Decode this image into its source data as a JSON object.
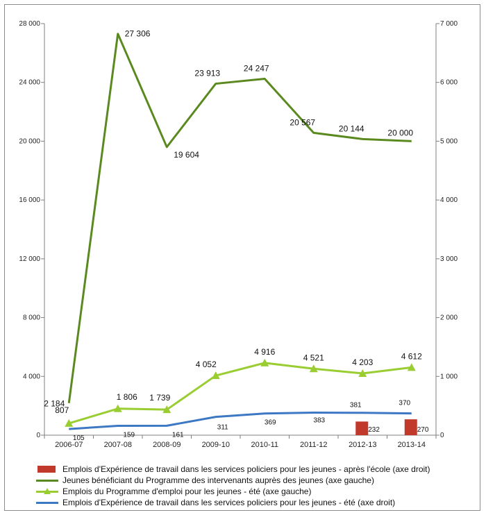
{
  "chart_data": {
    "type": "line",
    "categories": [
      "2006-07",
      "2007-08",
      "2008-09",
      "2009-10",
      "2010-11",
      "2011-12",
      "2012-13",
      "2013-14"
    ],
    "y_left": {
      "ylim": [
        0,
        28000
      ],
      "ticks": [
        0,
        4000,
        8000,
        12000,
        16000,
        20000,
        24000,
        28000
      ],
      "tick_labels": [
        "0",
        "4 000",
        "8 000",
        "12 000",
        "16 000",
        "20 000",
        "24 000",
        "28 000"
      ]
    },
    "y_right": {
      "ylim": [
        0,
        7000
      ],
      "ticks": [
        0,
        1000,
        2000,
        3000,
        4000,
        5000,
        6000,
        7000
      ],
      "tick_labels": [
        "0",
        "1 000",
        "2 000",
        "3 000",
        "4 000",
        "5 000",
        "6 000",
        "7 000"
      ]
    },
    "grid": false,
    "legend_position": "bottom",
    "series": [
      {
        "name": "Emplois d'Expérience de travail dans les services policiers pour les jeunes - après l'école (axe droit)",
        "kind": "bar",
        "axis": "right",
        "color": "#c0392b",
        "values": [
          null,
          null,
          null,
          null,
          null,
          null,
          232,
          270
        ],
        "labels": [
          "",
          "",
          "",
          "",
          "",
          "",
          "232",
          "270"
        ]
      },
      {
        "name": "Jeunes bénéficiant du Programme des intervenants auprès des jeunes (axe gauche)",
        "kind": "line",
        "axis": "left",
        "color": "#5a8a1f",
        "values": [
          2184,
          27306,
          19604,
          23913,
          24247,
          20567,
          20144,
          20000
        ],
        "labels": [
          "2 184",
          "27 306",
          "19 604",
          "23 913",
          "24 247",
          "20 567",
          "20 144",
          "20 000"
        ]
      },
      {
        "name": "Emplois du Programme d'emploi pour les jeunes - été (axe gauche)",
        "kind": "line-triangle",
        "axis": "left",
        "color": "#9acd32",
        "values": [
          807,
          1806,
          1739,
          4052,
          4916,
          4521,
          4203,
          4612
        ],
        "labels": [
          "807",
          "1 806",
          "1 739",
          "4 052",
          "4 916",
          "4 521",
          "4 203",
          "4 612"
        ]
      },
      {
        "name": "Emplois d'Expérience de travail dans les services policiers pour les jeunes - été (axe droit)",
        "kind": "line",
        "axis": "right",
        "color": "#3d78c4",
        "values": [
          105,
          159,
          161,
          311,
          369,
          383,
          381,
          370
        ],
        "labels": [
          "105",
          "159",
          "161",
          "311",
          "369",
          "383",
          "381",
          "370"
        ]
      }
    ]
  },
  "legend": {
    "items": [
      "Emplois d'Expérience de travail dans les services policiers pour les jeunes - après l'école (axe droit)",
      "Jeunes bénéficiant du Programme des intervenants auprès des jeunes (axe gauche)",
      "Emplois du Programme d'emploi pour les jeunes - été (axe gauche)",
      "Emplois d'Expérience de travail dans les services policiers pour les jeunes - été (axe droit)"
    ]
  }
}
